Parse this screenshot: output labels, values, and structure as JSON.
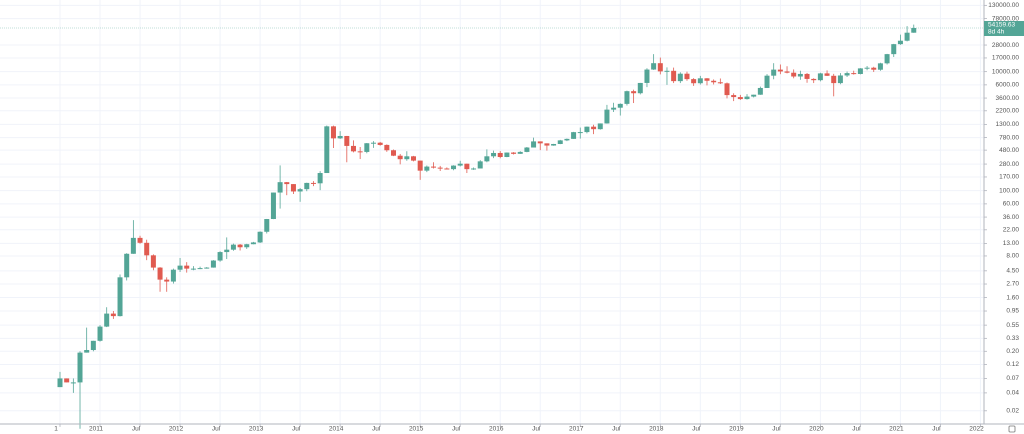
{
  "chart_data": {
    "type": "candlestick",
    "x": [
      "2010-07",
      "2010-08",
      "2010-09",
      "2010-10",
      "2010-11",
      "2010-12",
      "2011-01",
      "2011-02",
      "2011-03",
      "2011-04",
      "2011-05",
      "2011-06",
      "2011-07",
      "2011-08",
      "2011-09",
      "2011-10",
      "2011-11",
      "2011-12",
      "2012-01",
      "2012-02",
      "2012-03",
      "2012-04",
      "2012-05",
      "2012-06",
      "2012-07",
      "2012-08",
      "2012-09",
      "2012-10",
      "2012-11",
      "2012-12",
      "2013-01",
      "2013-02",
      "2013-03",
      "2013-04",
      "2013-05",
      "2013-06",
      "2013-07",
      "2013-08",
      "2013-09",
      "2013-10",
      "2013-11",
      "2013-12",
      "2014-01",
      "2014-02",
      "2014-03",
      "2014-04",
      "2014-05",
      "2014-06",
      "2014-07",
      "2014-08",
      "2014-09",
      "2014-10",
      "2014-11",
      "2014-12",
      "2015-01",
      "2015-02",
      "2015-03",
      "2015-04",
      "2015-05",
      "2015-06",
      "2015-07",
      "2015-08",
      "2015-09",
      "2015-10",
      "2015-11",
      "2015-12",
      "2016-01",
      "2016-02",
      "2016-03",
      "2016-04",
      "2016-05",
      "2016-06",
      "2016-07",
      "2016-08",
      "2016-09",
      "2016-10",
      "2016-11",
      "2016-12",
      "2017-01",
      "2017-02",
      "2017-03",
      "2017-04",
      "2017-05",
      "2017-06",
      "2017-07",
      "2017-08",
      "2017-09",
      "2017-10",
      "2017-11",
      "2017-12",
      "2018-01",
      "2018-02",
      "2018-03",
      "2018-04",
      "2018-05",
      "2018-06",
      "2018-07",
      "2018-08",
      "2018-09",
      "2018-10",
      "2018-11",
      "2018-12",
      "2019-01",
      "2019-02",
      "2019-03",
      "2019-04",
      "2019-05",
      "2019-06",
      "2019-07",
      "2019-08",
      "2019-09",
      "2019-10",
      "2019-11",
      "2019-12",
      "2020-01",
      "2020-02",
      "2020-03",
      "2020-04",
      "2020-05",
      "2020-06",
      "2020-07",
      "2020-08",
      "2020-09",
      "2020-10",
      "2020-11",
      "2020-12",
      "2021-01",
      "2021-02",
      "2021-03"
    ],
    "open": [
      0.05,
      0.07,
      0.06,
      0.06,
      0.19,
      0.21,
      0.3,
      0.52,
      0.86,
      0.78,
      3.5,
      8.7,
      16.1,
      13.3,
      8.2,
      5.1,
      3.2,
      2.97,
      4.7,
      5.5,
      4.9,
      4.9,
      5.0,
      5.1,
      6.7,
      9.3,
      10.2,
      12.4,
      11.2,
      12.6,
      13.5,
      20.4,
      33.4,
      93,
      139,
      129,
      97,
      106,
      135,
      133,
      198,
      1205,
      757,
      830,
      565,
      458,
      448,
      627,
      640,
      587,
      478,
      387,
      338,
      378,
      320,
      217,
      254,
      244,
      236,
      230,
      264,
      284,
      230,
      236,
      311,
      378,
      430,
      368,
      437,
      416,
      448,
      531,
      673,
      624,
      573,
      609,
      700,
      742,
      963,
      965,
      1190,
      1080,
      1348,
      2300,
      2480,
      2875,
      4700,
      4340,
      6460,
      10850,
      13880,
      10110,
      10330,
      6930,
      9240,
      7490,
      6390,
      7730,
      7030,
      6630,
      6370,
      4040,
      3740,
      3460,
      3810,
      4100,
      5320,
      8560,
      10820,
      10080,
      9600,
      8290,
      9150,
      7550,
      7190,
      9350,
      8520,
      6420,
      8630,
      9450,
      9140,
      11350,
      11650,
      10780,
      13800,
      19700,
      28990,
      33110,
      45140
    ],
    "high": [
      0.09,
      0.07,
      0.07,
      0.2,
      0.5,
      0.3,
      0.55,
      1.1,
      0.95,
      3.9,
      8.9,
      32,
      17.5,
      15,
      8.5,
      5.2,
      3.5,
      4.9,
      7.4,
      6.3,
      5.4,
      5.3,
      5.2,
      6.8,
      9.6,
      16.4,
      12.9,
      12.7,
      12.8,
      13.8,
      20.7,
      33.5,
      93,
      266,
      140,
      129,
      111,
      136,
      145,
      213,
      1242,
      1240,
      1000,
      832,
      700,
      542,
      632,
      680,
      660,
      600,
      492,
      414,
      460,
      385,
      320,
      265,
      300,
      261,
      246,
      268,
      318,
      284,
      245,
      326,
      495,
      470,
      463,
      439,
      444,
      460,
      541,
      780,
      673,
      625,
      612,
      714,
      753,
      975,
      1150,
      1200,
      1280,
      1350,
      2760,
      3000,
      2930,
      4800,
      4980,
      6470,
      11400,
      19700,
      17250,
      11790,
      11700,
      9760,
      10000,
      7780,
      8500,
      7780,
      7400,
      7680,
      6560,
      4330,
      4070,
      4200,
      4100,
      5610,
      9070,
      13880,
      13200,
      12330,
      10900,
      10370,
      9500,
      7750,
      9580,
      10500,
      9180,
      9470,
      10070,
      10380,
      11440,
      12470,
      12080,
      14100,
      19900,
      29300,
      41950,
      58350,
      61780
    ],
    "low": [
      0.05,
      0.06,
      0.04,
      0.01,
      0.19,
      0.2,
      0.29,
      0.51,
      0.7,
      0.77,
      3.1,
      8.7,
      12.8,
      6.8,
      4.6,
      2.0,
      2.0,
      2.75,
      4.3,
      4.2,
      4.6,
      4.8,
      4.9,
      5.1,
      6.4,
      7.1,
      9.8,
      9.9,
      10.5,
      12.6,
      13.2,
      19.1,
      33.2,
      50,
      84,
      88,
      65,
      98,
      119,
      102,
      198,
      522,
      740,
      300,
      440,
      340,
      425,
      525,
      570,
      450,
      380,
      277,
      318,
      310,
      152,
      205,
      236,
      214,
      228,
      220,
      255,
      198,
      224,
      236,
      300,
      352,
      350,
      365,
      406,
      415,
      443,
      531,
      480,
      470,
      570,
      605,
      680,
      742,
      750,
      920,
      890,
      1060,
      1340,
      2100,
      1830,
      2700,
      2970,
      4150,
      5500,
      10700,
      9000,
      6000,
      6430,
      6430,
      7050,
      5760,
      6070,
      5880,
      6090,
      6200,
      3560,
      3200,
      3350,
      3390,
      3690,
      4080,
      5320,
      7450,
      9070,
      9370,
      7730,
      7300,
      6520,
      6430,
      6870,
      8450,
      3850,
      6150,
      8120,
      8920,
      9000,
      10550,
      9880,
      10380,
      13200,
      17630,
      28130,
      32300,
      45000
    ],
    "close": [
      0.07,
      0.06,
      0.06,
      0.19,
      0.21,
      0.3,
      0.52,
      0.86,
      0.78,
      3.5,
      8.7,
      16.1,
      13.3,
      8.2,
      5.1,
      3.2,
      2.97,
      4.7,
      5.5,
      4.9,
      4.9,
      5.0,
      5.1,
      6.7,
      9.3,
      10.2,
      12.4,
      11.2,
      12.6,
      13.5,
      20.4,
      33.4,
      93,
      139,
      129,
      97,
      106,
      135,
      133,
      198,
      1205,
      757,
      830,
      565,
      458,
      448,
      627,
      640,
      587,
      478,
      387,
      338,
      378,
      320,
      217,
      254,
      244,
      236,
      230,
      264,
      284,
      230,
      236,
      311,
      378,
      430,
      368,
      437,
      416,
      448,
      531,
      673,
      624,
      573,
      609,
      700,
      742,
      963,
      965,
      1190,
      1080,
      1348,
      2300,
      2480,
      2875,
      4700,
      4340,
      6460,
      10850,
      13880,
      10110,
      10330,
      6930,
      9240,
      7490,
      6390,
      7730,
      7030,
      6630,
      6370,
      4040,
      3740,
      3460,
      3810,
      4100,
      5320,
      8560,
      10820,
      10080,
      9600,
      8290,
      9150,
      7550,
      7190,
      9350,
      8520,
      6420,
      8630,
      9450,
      9140,
      11350,
      11650,
      10780,
      13800,
      19700,
      28990,
      33110,
      45140,
      54159.63
    ],
    "up_color": "#53a596",
    "down_color": "#e05a50",
    "log_scale": true,
    "grid": true,
    "ylim": [
      0.012,
      160000
    ],
    "yticks": [
      {
        "value": 130000,
        "label": "130000.00"
      },
      {
        "value": 78000,
        "label": "78000.00"
      },
      {
        "value": 28000,
        "label": "28000.00"
      },
      {
        "value": 17000,
        "label": "17000.00"
      },
      {
        "value": 10000,
        "label": "10000.00"
      },
      {
        "value": 6000,
        "label": "6000.00"
      },
      {
        "value": 3600,
        "label": "3600.00"
      },
      {
        "value": 2200,
        "label": "2200.00"
      },
      {
        "value": 1300,
        "label": "1300.00"
      },
      {
        "value": 780,
        "label": "780.00"
      },
      {
        "value": 480,
        "label": "480.00"
      },
      {
        "value": 280,
        "label": "280.00"
      },
      {
        "value": 170,
        "label": "170.00"
      },
      {
        "value": 100,
        "label": "100.00"
      },
      {
        "value": 60,
        "label": "60.00"
      },
      {
        "value": 36,
        "label": "36.00"
      },
      {
        "value": 22,
        "label": "22.00"
      },
      {
        "value": 13,
        "label": "13.00"
      },
      {
        "value": 8,
        "label": "8.00"
      },
      {
        "value": 4.5,
        "label": "4.50"
      },
      {
        "value": 2.7,
        "label": "2.70"
      },
      {
        "value": 1.6,
        "label": "1.60"
      },
      {
        "value": 0.95,
        "label": "0.95"
      },
      {
        "value": 0.55,
        "label": "0.55"
      },
      {
        "value": 0.33,
        "label": "0.33"
      },
      {
        "value": 0.2,
        "label": "0.20"
      },
      {
        "value": 0.12,
        "label": "0.12"
      },
      {
        "value": 0.07,
        "label": "0.07"
      },
      {
        "value": 0.04,
        "label": "0.04"
      },
      {
        "value": 0.02,
        "label": "0.02"
      }
    ],
    "xticks": [
      {
        "value": "2010-07",
        "label": "1"
      },
      {
        "value": "2011-01",
        "label": "2011"
      },
      {
        "value": "2011-07",
        "label": "Jul"
      },
      {
        "value": "2012-01",
        "label": "2012"
      },
      {
        "value": "2012-07",
        "label": "Jul"
      },
      {
        "value": "2013-01",
        "label": "2013"
      },
      {
        "value": "2013-07",
        "label": "Jul"
      },
      {
        "value": "2014-01",
        "label": "2014"
      },
      {
        "value": "2014-07",
        "label": "Jul"
      },
      {
        "value": "2015-01",
        "label": "2015"
      },
      {
        "value": "2015-07",
        "label": "Jul"
      },
      {
        "value": "2016-01",
        "label": "2016"
      },
      {
        "value": "2016-07",
        "label": "Jul"
      },
      {
        "value": "2017-01",
        "label": "2017"
      },
      {
        "value": "2017-07",
        "label": "Jul"
      },
      {
        "value": "2018-01",
        "label": "2018"
      },
      {
        "value": "2018-07",
        "label": "Jul"
      },
      {
        "value": "2019-01",
        "label": "2019"
      },
      {
        "value": "2019-07",
        "label": "Jul"
      },
      {
        "value": "2020-01",
        "label": "2020"
      },
      {
        "value": "2020-07",
        "label": "Jul"
      },
      {
        "value": "2021-01",
        "label": "2021"
      },
      {
        "value": "2021-07",
        "label": "Jul"
      },
      {
        "value": "2022-01",
        "label": "2022"
      }
    ],
    "countdown": "8d 4h"
  }
}
